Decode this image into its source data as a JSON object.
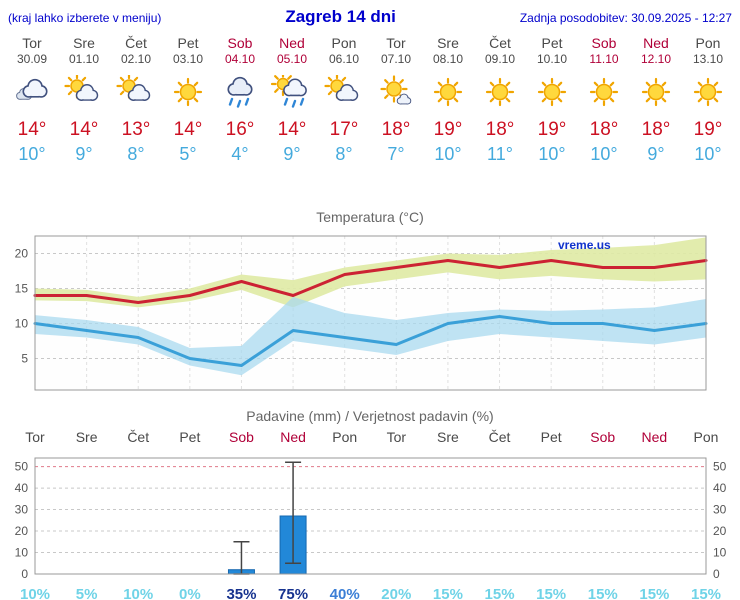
{
  "header": {
    "left_note": "(kraj lahko izberete v meniju)",
    "title": "Zagreb 14 dni",
    "last_update": "Zadnja posodobitev: 30.09.2025 - 12:27"
  },
  "colors": {
    "link_blue": "#0000cc",
    "weekend_red": "#b00038",
    "tmax_red": "#cc1122",
    "tmin_blue": "#44aadd",
    "bar_blue": "#2288d8"
  },
  "forecast_days": [
    {
      "day": "Tor",
      "date": "30.09",
      "weekend": false,
      "icon": "cloudy",
      "tmax": "14°",
      "tmin": "10°"
    },
    {
      "day": "Sre",
      "date": "01.10",
      "weekend": false,
      "icon": "partly-cloudy",
      "tmax": "14°",
      "tmin": "9°"
    },
    {
      "day": "Čet",
      "date": "02.10",
      "weekend": false,
      "icon": "partly-cloudy",
      "tmax": "13°",
      "tmin": "8°"
    },
    {
      "day": "Pet",
      "date": "03.10",
      "weekend": false,
      "icon": "sunny",
      "tmax": "14°",
      "tmin": "5°"
    },
    {
      "day": "Sob",
      "date": "04.10",
      "weekend": true,
      "icon": "rain",
      "tmax": "16°",
      "tmin": "4°"
    },
    {
      "day": "Ned",
      "date": "05.10",
      "weekend": true,
      "icon": "rain-sun",
      "tmax": "14°",
      "tmin": "9°"
    },
    {
      "day": "Pon",
      "date": "06.10",
      "weekend": false,
      "icon": "partly-cloudy",
      "tmax": "17°",
      "tmin": "8°"
    },
    {
      "day": "Tor",
      "date": "07.10",
      "weekend": false,
      "icon": "mostly-sunny",
      "tmax": "18°",
      "tmin": "7°"
    },
    {
      "day": "Sre",
      "date": "08.10",
      "weekend": false,
      "icon": "sunny",
      "tmax": "19°",
      "tmin": "10°"
    },
    {
      "day": "Čet",
      "date": "09.10",
      "weekend": false,
      "icon": "sunny",
      "tmax": "18°",
      "tmin": "11°"
    },
    {
      "day": "Pet",
      "date": "10.10",
      "weekend": false,
      "icon": "sunny",
      "tmax": "19°",
      "tmin": "10°"
    },
    {
      "day": "Sob",
      "date": "11.10",
      "weekend": true,
      "icon": "sunny",
      "tmax": "18°",
      "tmin": "10°"
    },
    {
      "day": "Ned",
      "date": "12.10",
      "weekend": true,
      "icon": "sunny",
      "tmax": "18°",
      "tmin": "9°"
    },
    {
      "day": "Pon",
      "date": "13.10",
      "weekend": false,
      "icon": "sunny",
      "tmax": "19°",
      "tmin": "10°"
    }
  ],
  "chart_data": [
    {
      "type": "line",
      "title": "Temperatura (°C)",
      "watermark": "vreme.us",
      "ylim": [
        0.5,
        22.5
      ],
      "yticks": [
        5,
        10,
        15,
        20
      ],
      "grid": true,
      "legend_position": "none",
      "series": [
        {
          "name": "max-temperature",
          "color": "#cc2233",
          "values": [
            14,
            14,
            13,
            14,
            16,
            14,
            17,
            18,
            19,
            18,
            19,
            18,
            18,
            19
          ]
        },
        {
          "name": "min-temperature",
          "color": "#3aa0d8",
          "values": [
            10,
            9,
            8,
            5,
            4,
            9,
            8,
            7,
            10,
            11,
            10,
            10,
            9,
            10
          ]
        }
      ],
      "bands": [
        {
          "name": "max-range",
          "color": "#dfeaa4",
          "upper": [
            15,
            14.8,
            13.8,
            15,
            17,
            16.2,
            18,
            19,
            20,
            19.8,
            20.5,
            20.8,
            21.2,
            22.3
          ],
          "lower": [
            13.3,
            13.2,
            12.3,
            13.2,
            14.8,
            12.3,
            15.3,
            16.3,
            17.3,
            16.3,
            16.8,
            16.3,
            16,
            16.3
          ]
        },
        {
          "name": "min-range",
          "color": "#a9d9ef",
          "upper": [
            11.2,
            10.5,
            9.5,
            6.5,
            6.8,
            13.8,
            11.5,
            10.5,
            11.5,
            12,
            11.8,
            12,
            12.3,
            13.5
          ],
          "lower": [
            8.5,
            8,
            7,
            4,
            2.6,
            7.5,
            6.5,
            5.5,
            7.5,
            8.5,
            8,
            7.5,
            7,
            8
          ]
        }
      ]
    },
    {
      "type": "bar",
      "title": "Padavine (mm) / Verjetnost padavin (%)",
      "categories": [
        "Tor",
        "Sre",
        "Čet",
        "Pet",
        "Sob",
        "Ned",
        "Pon",
        "Tor",
        "Sre",
        "Čet",
        "Pet",
        "Sob",
        "Ned",
        "Pon"
      ],
      "weekend": [
        false,
        false,
        false,
        false,
        true,
        true,
        false,
        false,
        false,
        false,
        false,
        true,
        true,
        false
      ],
      "values": [
        0,
        0,
        0,
        0,
        2,
        27,
        0,
        0,
        0,
        0,
        0,
        0,
        0,
        0
      ],
      "whiskers": [
        null,
        null,
        null,
        null,
        [
          0,
          15
        ],
        [
          5,
          52
        ],
        null,
        null,
        null,
        null,
        null,
        null,
        null,
        null
      ],
      "yticks": [
        0,
        10,
        20,
        30,
        40,
        50
      ],
      "ylim": [
        0,
        54
      ],
      "bar_color": "#2288d8",
      "bar_border": "#1668b0",
      "topline_color": "#e07a8a",
      "prob_colors": {
        "low": "#6fd3e7",
        "mid": "#3b7fd6",
        "high": "#17338f"
      },
      "probabilities": [
        {
          "label": "10%",
          "level": "low"
        },
        {
          "label": "5%",
          "level": "low"
        },
        {
          "label": "10%",
          "level": "low"
        },
        {
          "label": "0%",
          "level": "low"
        },
        {
          "label": "35%",
          "level": "high"
        },
        {
          "label": "75%",
          "level": "high"
        },
        {
          "label": "40%",
          "level": "mid"
        },
        {
          "label": "20%",
          "level": "low"
        },
        {
          "label": "15%",
          "level": "low"
        },
        {
          "label": "15%",
          "level": "low"
        },
        {
          "label": "15%",
          "level": "low"
        },
        {
          "label": "15%",
          "level": "low"
        },
        {
          "label": "15%",
          "level": "low"
        },
        {
          "label": "15%",
          "level": "low"
        }
      ]
    }
  ]
}
